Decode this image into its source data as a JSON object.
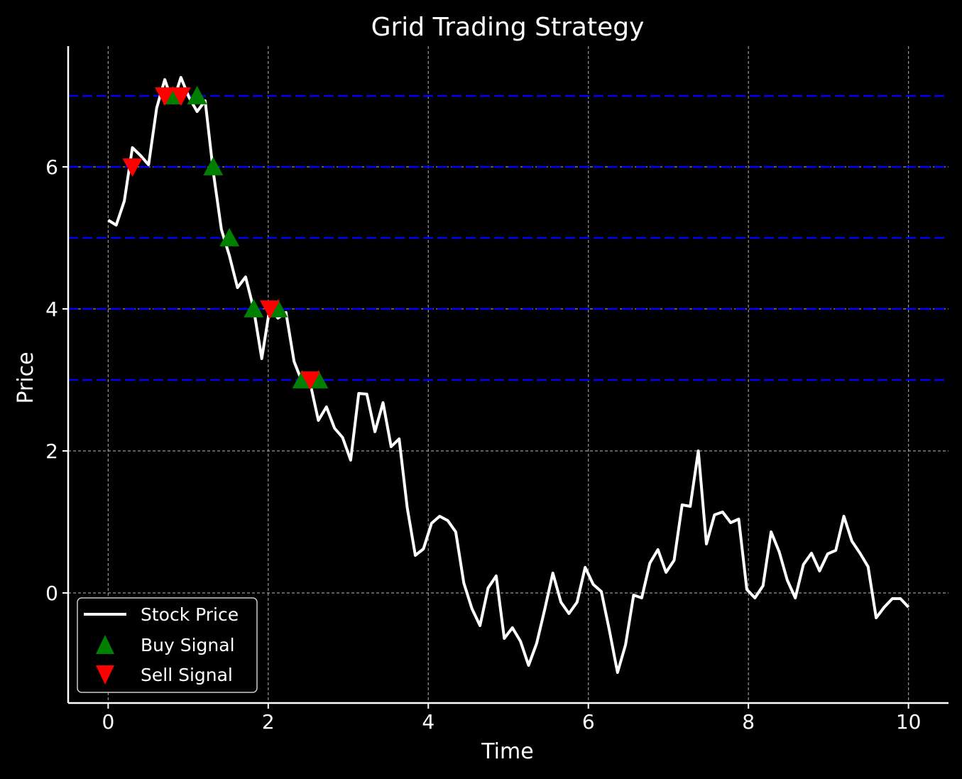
{
  "chart_data": {
    "type": "line",
    "title": "Grid Trading Strategy",
    "xlabel": "Time",
    "ylabel": "Price",
    "xlim": [
      -0.5,
      10.5
    ],
    "ylim": [
      -1.55,
      7.7
    ],
    "xticks": [
      0,
      2,
      4,
      6,
      8,
      10
    ],
    "yticks": [
      0,
      2,
      4,
      6
    ],
    "grid": true,
    "legend_position": "lower-left",
    "colors": {
      "background": "#000000",
      "price_line": "#ffffff",
      "grid_level": "#0000ff",
      "buy": "#008000",
      "sell": "#ff0000",
      "gridline": "#b0b0b0"
    },
    "grid_levels": [
      3,
      4,
      5,
      6,
      7
    ],
    "series": [
      {
        "name": "Stock Price",
        "x": [
          0,
          0.101,
          0.202,
          0.303,
          0.404,
          0.505,
          0.606,
          0.707,
          0.808,
          0.909,
          1.01,
          1.111,
          1.212,
          1.313,
          1.414,
          1.515,
          1.616,
          1.717,
          1.818,
          1.919,
          2.02,
          2.121,
          2.222,
          2.323,
          2.424,
          2.525,
          2.626,
          2.727,
          2.828,
          2.929,
          3.03,
          3.131,
          3.232,
          3.333,
          3.434,
          3.535,
          3.636,
          3.737,
          3.838,
          3.939,
          4.04,
          4.141,
          4.242,
          4.343,
          4.444,
          4.545,
          4.646,
          4.747,
          4.848,
          4.949,
          5.051,
          5.152,
          5.253,
          5.354,
          5.455,
          5.556,
          5.657,
          5.758,
          5.859,
          5.96,
          6.061,
          6.162,
          6.263,
          6.364,
          6.465,
          6.566,
          6.667,
          6.768,
          6.869,
          6.97,
          7.071,
          7.172,
          7.273,
          7.374,
          7.475,
          7.576,
          7.677,
          7.778,
          7.879,
          7.98,
          8.081,
          8.182,
          8.283,
          8.384,
          8.485,
          8.586,
          8.687,
          8.788,
          8.889,
          8.99,
          9.091,
          9.192,
          9.293,
          9.394,
          9.495,
          9.596,
          9.697,
          9.798,
          9.899,
          10
        ],
        "y": [
          5.25,
          5.18,
          5.52,
          6.27,
          6.16,
          6.03,
          6.83,
          7.23,
          6.9,
          7.26,
          6.98,
          6.78,
          6.93,
          5.93,
          5.12,
          4.75,
          4.3,
          4.45,
          4.0,
          3.3,
          4.02,
          3.87,
          3.95,
          3.26,
          2.97,
          2.95,
          2.43,
          2.62,
          2.32,
          2.19,
          1.87,
          2.81,
          2.8,
          2.27,
          2.68,
          2.06,
          2.17,
          1.2,
          0.53,
          0.62,
          0.98,
          1.08,
          1.02,
          0.86,
          0.14,
          -0.22,
          -0.46,
          0.07,
          0.24,
          -0.64,
          -0.49,
          -0.68,
          -1.02,
          -0.71,
          -0.23,
          0.28,
          -0.13,
          -0.29,
          -0.13,
          0.36,
          0.12,
          0.02,
          -0.53,
          -1.12,
          -0.73,
          -0.03,
          -0.07,
          0.42,
          0.61,
          0.29,
          0.46,
          1.24,
          1.22,
          2.0,
          0.69,
          1.1,
          1.14,
          0.99,
          1.04,
          0.05,
          -0.07,
          0.1,
          0.86,
          0.58,
          0.18,
          -0.07,
          0.4,
          0.56,
          0.31,
          0.55,
          0.6,
          1.08,
          0.73,
          0.56,
          0.37,
          -0.35,
          -0.2,
          -0.08,
          -0.08,
          -0.2
        ]
      }
    ],
    "buy_signals": {
      "name": "Buy Signal",
      "x": [
        0.808,
        1.111,
        1.313,
        1.515,
        1.818,
        2.121,
        2.424,
        2.626
      ],
      "y": [
        7,
        7,
        6,
        5,
        4,
        4,
        3,
        3
      ]
    },
    "sell_signals": {
      "name": "Sell Signal",
      "x": [
        0.303,
        0.707,
        0.909,
        2.02,
        2.525
      ],
      "y": [
        6,
        7,
        7,
        4,
        3
      ]
    }
  }
}
